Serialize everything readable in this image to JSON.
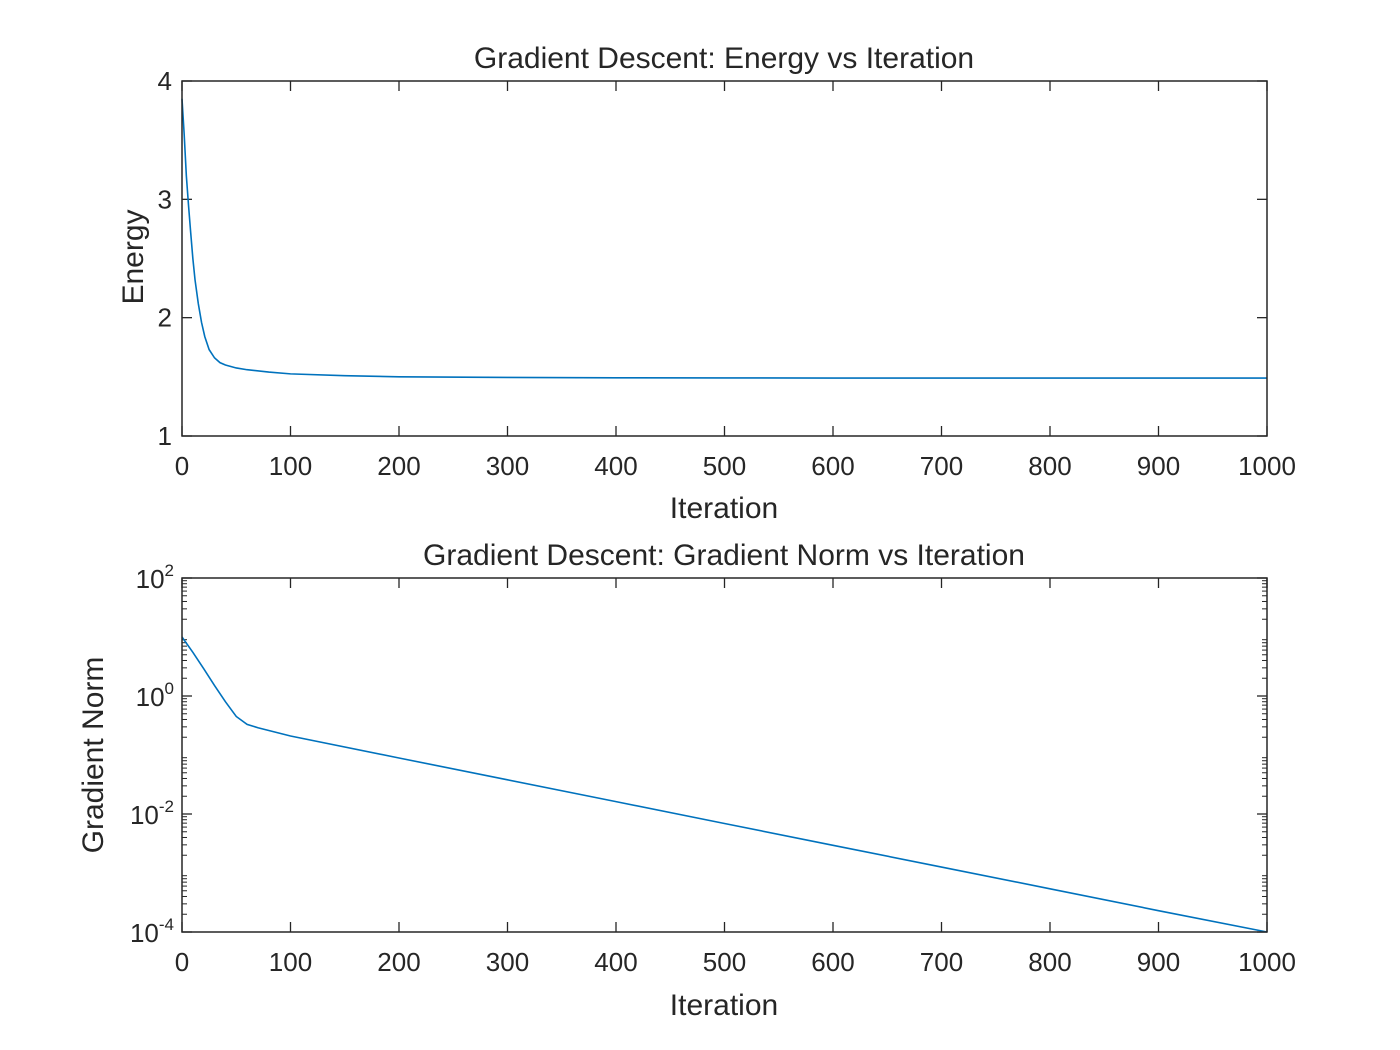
{
  "chart_data": [
    {
      "type": "line",
      "title": "Gradient Descent: Energy vs Iteration",
      "xlabel": "Iteration",
      "ylabel": "Energy",
      "xlim": [
        0,
        1000
      ],
      "ylim": [
        1,
        4
      ],
      "yscale": "linear",
      "grid": false,
      "xticks": [
        "0",
        "100",
        "200",
        "300",
        "400",
        "500",
        "600",
        "700",
        "800",
        "900",
        "1000"
      ],
      "yticks": [
        "1",
        "2",
        "3",
        "4"
      ],
      "color": "#0072BD",
      "series": [
        {
          "x": [
            0,
            2,
            4,
            6,
            8,
            10,
            12,
            15,
            18,
            21,
            25,
            30,
            35,
            40,
            50,
            60,
            80,
            100,
            150,
            200,
            300,
            400,
            500,
            600,
            700,
            800,
            900,
            1000
          ],
          "y": [
            3.85,
            3.55,
            3.2,
            2.95,
            2.72,
            2.5,
            2.32,
            2.12,
            1.96,
            1.84,
            1.73,
            1.66,
            1.62,
            1.6,
            1.575,
            1.56,
            1.54,
            1.525,
            1.51,
            1.5,
            1.495,
            1.492,
            1.491,
            1.49,
            1.49,
            1.49,
            1.49,
            1.49
          ]
        }
      ]
    },
    {
      "type": "line",
      "title": "Gradient Descent: Gradient Norm vs Iteration",
      "xlabel": "Iteration",
      "ylabel": "Gradient Norm",
      "xlim": [
        0,
        1000
      ],
      "ylim": [
        0.0001,
        100
      ],
      "yscale": "log",
      "grid": false,
      "xticks": [
        "0",
        "100",
        "200",
        "300",
        "400",
        "500",
        "600",
        "700",
        "800",
        "900",
        "1000"
      ],
      "yticks": [
        {
          "base": "10",
          "exp": "2"
        },
        {
          "base": "10",
          "exp": "0"
        },
        {
          "base": "10",
          "exp": "-2"
        },
        {
          "base": "10",
          "exp": "-4"
        }
      ],
      "color": "#0072BD",
      "series": [
        {
          "x": [
            0,
            10,
            20,
            30,
            40,
            50,
            60,
            70,
            80,
            100,
            200,
            300,
            400,
            500,
            600,
            700,
            800,
            900,
            1000
          ],
          "y": [
            10,
            5.5,
            2.9,
            1.5,
            0.8,
            0.45,
            0.33,
            0.29,
            0.26,
            0.21,
            0.089,
            0.038,
            0.0162,
            0.0069,
            0.00295,
            0.00126,
            0.00054,
            0.00023,
            0.0001
          ]
        }
      ]
    }
  ]
}
